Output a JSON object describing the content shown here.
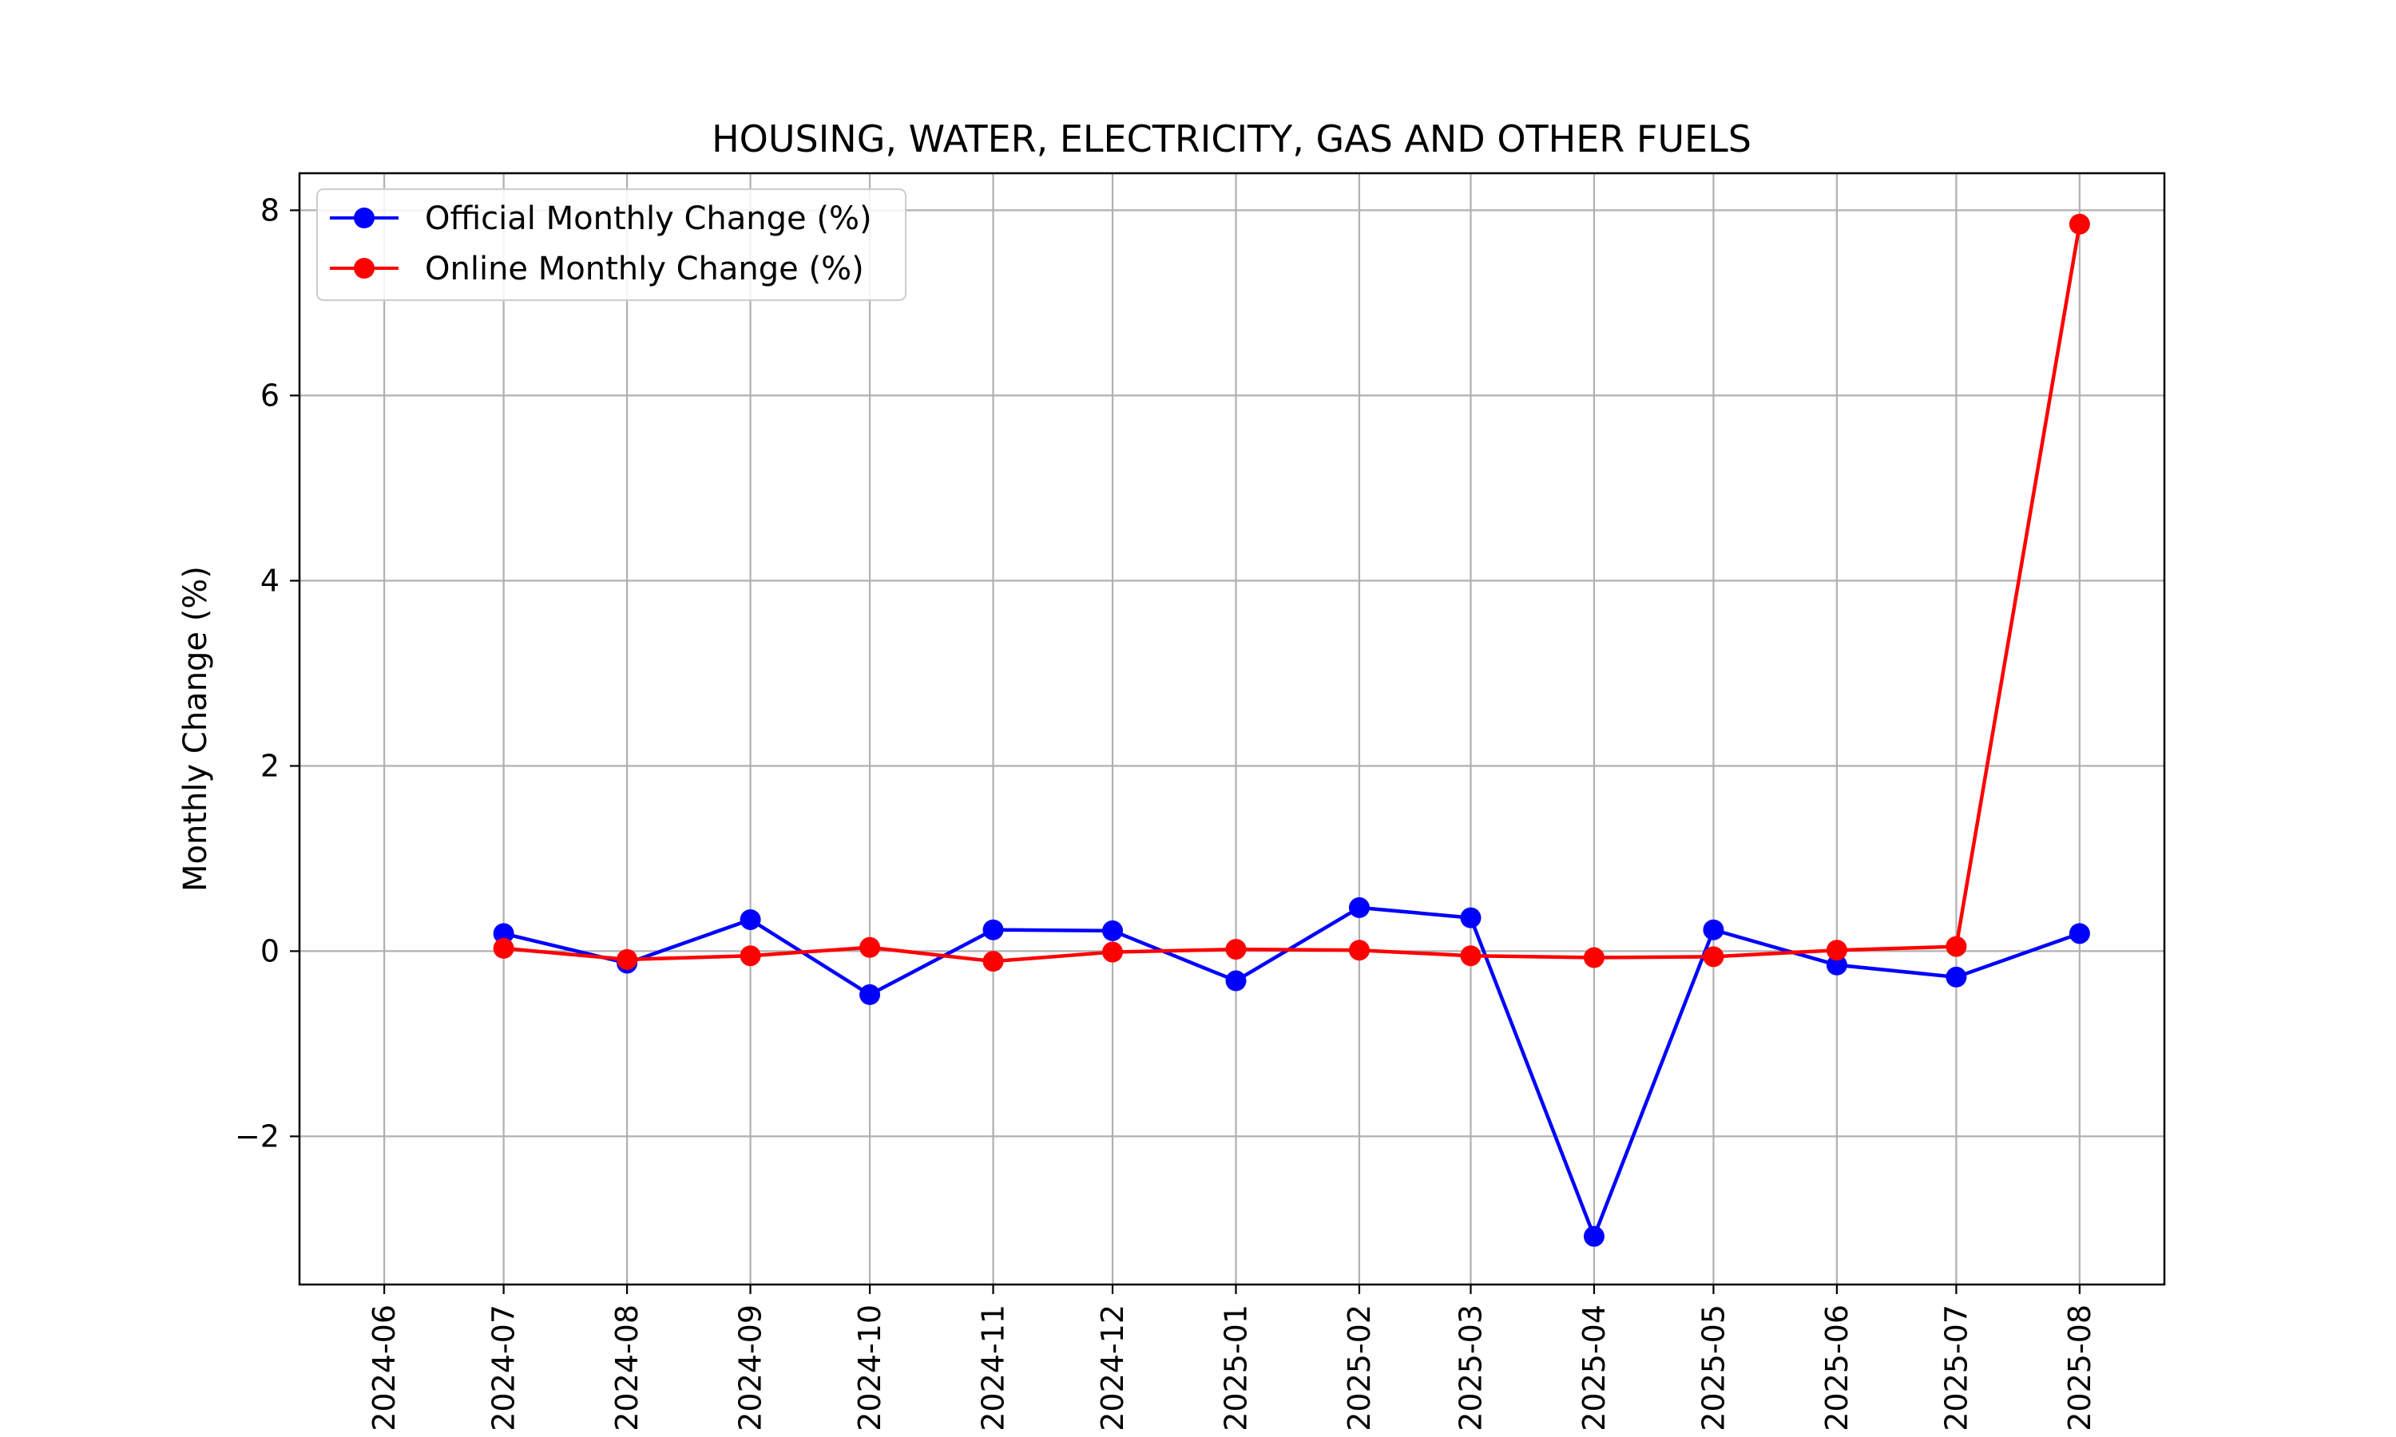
{
  "chart_data": {
    "type": "line",
    "title": "HOUSING, WATER, ELECTRICITY, GAS AND OTHER FUELS",
    "xlabel": "",
    "ylabel": "Monthly Change (%)",
    "x_ticks": [
      "2024-06",
      "2024-07",
      "2024-08",
      "2024-09",
      "2024-10",
      "2024-11",
      "2024-12",
      "2025-01",
      "2025-02",
      "2025-03",
      "2025-04",
      "2025-05",
      "2025-06",
      "2025-07",
      "2025-08"
    ],
    "y_ticks": [
      -2,
      0,
      2,
      4,
      6,
      8
    ],
    "y_tick_labels": [
      "−2",
      "0",
      "2",
      "4",
      "6",
      "8"
    ],
    "xlim": [
      "2024-06-01",
      "2025-08-01"
    ],
    "ylim": [
      -3.6,
      8.4
    ],
    "grid": true,
    "legend_position": "upper-left",
    "series": [
      {
        "name": "Official Monthly Change (%)",
        "color": "#0000ff",
        "x": [
          "2024-07-01",
          "2024-08-01",
          "2024-09-01",
          "2024-10-01",
          "2024-11-01",
          "2024-12-01",
          "2025-01-01",
          "2025-02-01",
          "2025-03-01",
          "2025-04-01",
          "2025-05-01",
          "2025-06-01",
          "2025-07-01",
          "2025-08-01"
        ],
        "values": [
          0.19,
          -0.13,
          0.34,
          -0.47,
          0.23,
          0.22,
          -0.32,
          0.47,
          0.36,
          -3.08,
          0.23,
          -0.15,
          -0.28,
          0.19
        ]
      },
      {
        "name": "Online Monthly Change (%)",
        "color": "#ff0000",
        "x": [
          "2024-07-01",
          "2024-08-01",
          "2024-09-01",
          "2024-10-01",
          "2024-11-01",
          "2024-12-01",
          "2025-01-01",
          "2025-02-01",
          "2025-03-01",
          "2025-04-01",
          "2025-05-01",
          "2025-06-01",
          "2025-07-01",
          "2025-08-01"
        ],
        "values": [
          0.03,
          -0.09,
          -0.05,
          0.04,
          -0.11,
          -0.01,
          0.02,
          0.01,
          -0.05,
          -0.07,
          -0.06,
          0.01,
          0.05,
          7.85
        ]
      }
    ]
  }
}
